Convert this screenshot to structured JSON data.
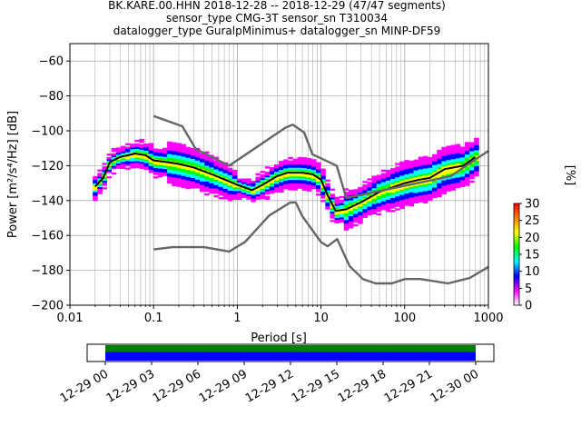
{
  "chart_data": {
    "type": "heatmap",
    "title_lines": [
      "BK.KARE.00.HHN   2018-12-28 -- 2018-12-29  (47/47 segments)",
      "sensor_type CMG-3T sensor_sn T310034",
      "datalogger_type GuralpMinimus+ datalogger_sn MINP-DF59"
    ],
    "xlabel": "Period [s]",
    "ylabel": "Power [m²/s⁴/Hz] [dB]",
    "xscale": "log",
    "xlim": [
      0.01,
      1000
    ],
    "ylim": [
      -200,
      -50
    ],
    "grid": true,
    "x_ticks": [
      0.01,
      0.1,
      1,
      10,
      100,
      1000
    ],
    "x_tick_labels": [
      "0.01",
      "0.1",
      "1",
      "10",
      "100",
      "1000"
    ],
    "y_ticks": [
      -200,
      -180,
      -160,
      -140,
      -120,
      -100,
      -80,
      -60
    ],
    "y_tick_labels": [
      "−200",
      "−180",
      "−160",
      "−140",
      "−120",
      "−100",
      "−80",
      "−60"
    ],
    "colorbar": {
      "label": "[%]",
      "range": [
        0,
        30
      ],
      "ticks": [
        0,
        5,
        10,
        15,
        20,
        25,
        30
      ],
      "tick_labels": [
        "0",
        "5",
        "10",
        "15",
        "20",
        "25",
        "30"
      ],
      "colors": [
        "#ffffff",
        "#ff00ff",
        "#0000ff",
        "#00ffff",
        "#00ff00",
        "#ffff00",
        "#ff7f00",
        "#ff0000"
      ]
    },
    "series": [
      {
        "role": "mean",
        "color": "#000000",
        "x": [
          0.02,
          0.025,
          0.03,
          0.04,
          0.05,
          0.06,
          0.08,
          0.1,
          0.15,
          0.2,
          0.3,
          0.5,
          0.8,
          1.0,
          1.5,
          2.0,
          3.0,
          4.0,
          6.0,
          8.0,
          10.0,
          12.0,
          15.0,
          20.0,
          30.0,
          50.0,
          100.0,
          150.0,
          200.0,
          300.0,
          500.0,
          700.0
        ],
        "y": [
          -132,
          -127,
          -118,
          -115,
          -114,
          -113,
          -114,
          -117,
          -118,
          -119,
          -121,
          -125,
          -129,
          -131,
          -134,
          -131,
          -126,
          -124,
          -124,
          -125,
          -128,
          -137,
          -146,
          -145,
          -141,
          -135,
          -130,
          -128,
          -127,
          -122,
          -120,
          -115
        ]
      },
      {
        "role": "nhnm",
        "color": "#666666",
        "x": [
          0.1,
          0.22,
          0.32,
          0.8,
          3.8,
          4.6,
          6.3,
          7.9,
          15.4,
          20.0,
          354.8,
          1000
        ],
        "y": [
          -91.5,
          -97.4,
          -110.5,
          -120.0,
          -98.0,
          -96.5,
          -101.0,
          -113.5,
          -120.0,
          -138.5,
          -126.0,
          -111.5
        ]
      },
      {
        "role": "nlnm",
        "color": "#666666",
        "x": [
          0.1,
          0.17,
          0.4,
          0.8,
          1.24,
          2.4,
          4.3,
          5.0,
          6.0,
          10.0,
          12.0,
          15.6,
          21.9,
          31.6,
          45.0,
          70.0,
          101.0,
          154.0,
          328.0,
          600.0,
          1000
        ],
        "y": [
          -168.0,
          -166.7,
          -166.7,
          -169.2,
          -163.7,
          -148.6,
          -141.1,
          -141.1,
          -149.0,
          -163.8,
          -166.2,
          -162.1,
          -177.5,
          -185.0,
          -187.5,
          -187.5,
          -185.0,
          -185.0,
          -187.5,
          -184.4,
          -178.0
        ]
      }
    ]
  },
  "timeline": {
    "tick_labels": [
      "12-29 00",
      "12-29 03",
      "12-29 06",
      "12-29 09",
      "12-29 12",
      "12-29 15",
      "12-29 18",
      "12-29 21",
      "12-30 00"
    ],
    "coverage_start": 0.0,
    "coverage_end": 1.0,
    "colors": {
      "upper": "#008000",
      "lower": "#0000ff"
    }
  }
}
